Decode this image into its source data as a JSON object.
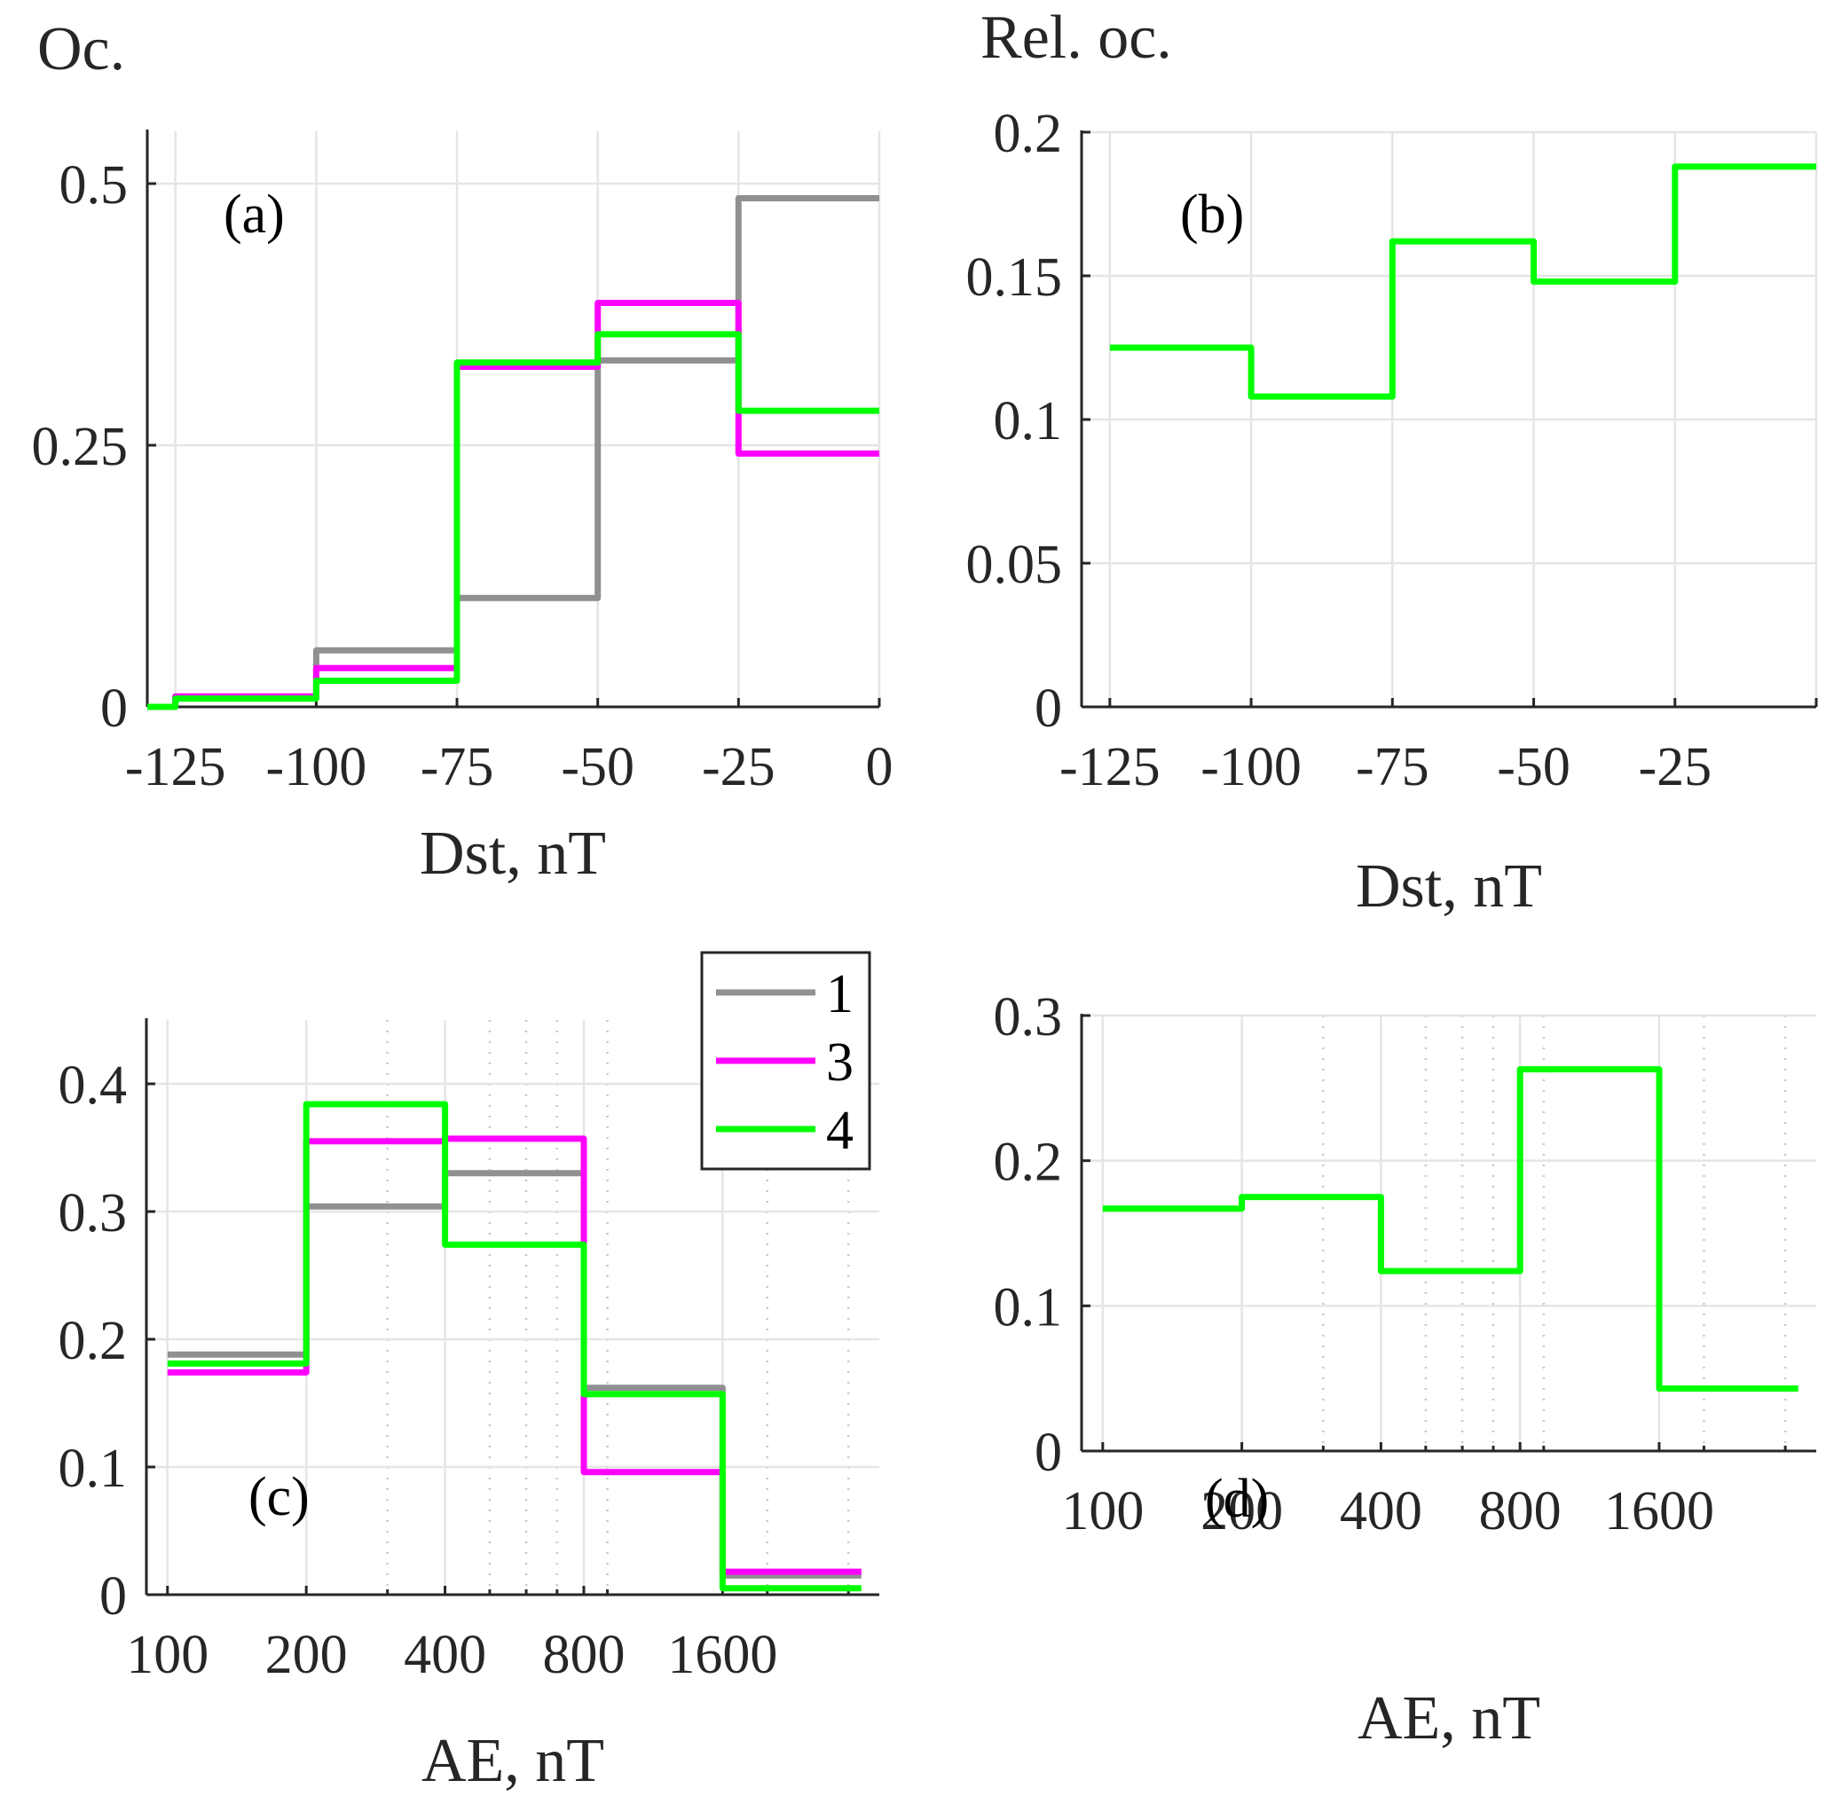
{
  "figure": {
    "colors": {
      "series_1": "#909090",
      "series_3": "#ff00ff",
      "series_4": "#00ff00"
    }
  },
  "chart_data": [
    {
      "id": "a",
      "type": "line",
      "step": true,
      "panel_label": "(a)",
      "title": "",
      "ylabel": "Oc.",
      "xlabel": "Dst, nT",
      "xscale": "linear",
      "xlim": [
        -130,
        0
      ],
      "ylim": [
        0,
        0.55
      ],
      "xticks": [
        -125,
        -100,
        -75,
        -50,
        -25,
        0
      ],
      "xtick_labels": [
        "-125",
        "-100",
        "-75",
        "-50",
        "-25",
        "0"
      ],
      "yticks": [
        0,
        0.25,
        0.5
      ],
      "ytick_labels": [
        "0",
        "0.25",
        "0.5"
      ],
      "grid": true,
      "bin_edges": [
        -130,
        -125,
        -100,
        -75,
        -50,
        -25,
        0
      ],
      "series": [
        {
          "name": "1",
          "color": "#909090",
          "values": [
            0.0,
            0.01,
            0.054,
            0.104,
            0.331,
            0.486
          ]
        },
        {
          "name": "3",
          "color": "#ff00ff",
          "values": [
            0.0,
            0.01,
            0.037,
            0.325,
            0.386,
            0.242
          ]
        },
        {
          "name": "4",
          "color": "#00ff00",
          "values": [
            0.0,
            0.008,
            0.025,
            0.329,
            0.356,
            0.283
          ]
        }
      ]
    },
    {
      "id": "b",
      "type": "line",
      "step": true,
      "panel_label": "(b)",
      "title": "",
      "ylabel": "Rel. oc.",
      "xlabel": "Dst, nT",
      "xscale": "linear",
      "xlim": [
        -130,
        0
      ],
      "ylim": [
        0,
        0.2
      ],
      "xticks": [
        -125,
        -100,
        -75,
        -50,
        -25
      ],
      "xtick_labels": [
        "-125",
        "-100",
        "-75",
        "-50",
        "-25"
      ],
      "xgrid_extra": [
        0
      ],
      "yticks": [
        0,
        0.05,
        0.1,
        0.15,
        0.2
      ],
      "ytick_labels": [
        "0",
        "0.05",
        "0.1",
        "0.15",
        "0.2"
      ],
      "grid": true,
      "bin_edges": [
        -125,
        -100,
        -75,
        -50,
        -25,
        0
      ],
      "series": [
        {
          "name": "4",
          "color": "#00ff00",
          "values": [
            0.125,
            0.108,
            0.162,
            0.148,
            0.188
          ]
        }
      ]
    },
    {
      "id": "c",
      "type": "line",
      "step": true,
      "panel_label": "(c)",
      "title": "",
      "ylabel": "",
      "xlabel": "AE, nT",
      "xscale": "log",
      "xlim": [
        90,
        3500
      ],
      "ylim": [
        0,
        0.45
      ],
      "xticks": [
        100,
        200,
        400,
        800,
        1600
      ],
      "xtick_labels": [
        "100",
        "200",
        "400",
        "800",
        "1600"
      ],
      "xminor_grid": [
        300,
        500,
        600,
        700,
        900,
        2000,
        3000
      ],
      "yticks": [
        0,
        0.1,
        0.2,
        0.3,
        0.4
      ],
      "ytick_labels": [
        "0",
        "0.1",
        "0.2",
        "0.3",
        "0.4"
      ],
      "grid": true,
      "legend": {
        "placement": "top-right",
        "entries": [
          "1",
          "3",
          "4"
        ]
      },
      "bin_edges": [
        100,
        200,
        400,
        800,
        1600,
        3200
      ],
      "series": [
        {
          "name": "1",
          "color": "#909090",
          "values": [
            0.188,
            0.304,
            0.33,
            0.162,
            0.015
          ]
        },
        {
          "name": "3",
          "color": "#ff00ff",
          "values": [
            0.174,
            0.355,
            0.357,
            0.096,
            0.018
          ]
        },
        {
          "name": "4",
          "color": "#00ff00",
          "values": [
            0.181,
            0.384,
            0.274,
            0.157,
            0.005
          ]
        }
      ]
    },
    {
      "id": "d",
      "type": "line",
      "step": true,
      "panel_label": "(d)",
      "title": "",
      "ylabel": "",
      "xlabel": "AE, nT",
      "xscale": "log",
      "xlim": [
        90,
        3500
      ],
      "ylim": [
        0,
        0.3
      ],
      "xticks": [
        100,
        200,
        400,
        800,
        1600
      ],
      "xtick_labels": [
        "100",
        "200",
        "400",
        "800",
        "1600"
      ],
      "xminor_grid": [
        300,
        500,
        600,
        700,
        900,
        2000,
        3000
      ],
      "yticks": [
        0,
        0.1,
        0.2,
        0.3
      ],
      "ytick_labels": [
        "0",
        "0.1",
        "0.2",
        "0.3"
      ],
      "grid": true,
      "bin_edges": [
        100,
        200,
        400,
        800,
        1600,
        3200
      ],
      "series": [
        {
          "name": "4",
          "color": "#00ff00",
          "values": [
            0.167,
            0.175,
            0.124,
            0.263,
            0.043
          ]
        }
      ]
    }
  ]
}
